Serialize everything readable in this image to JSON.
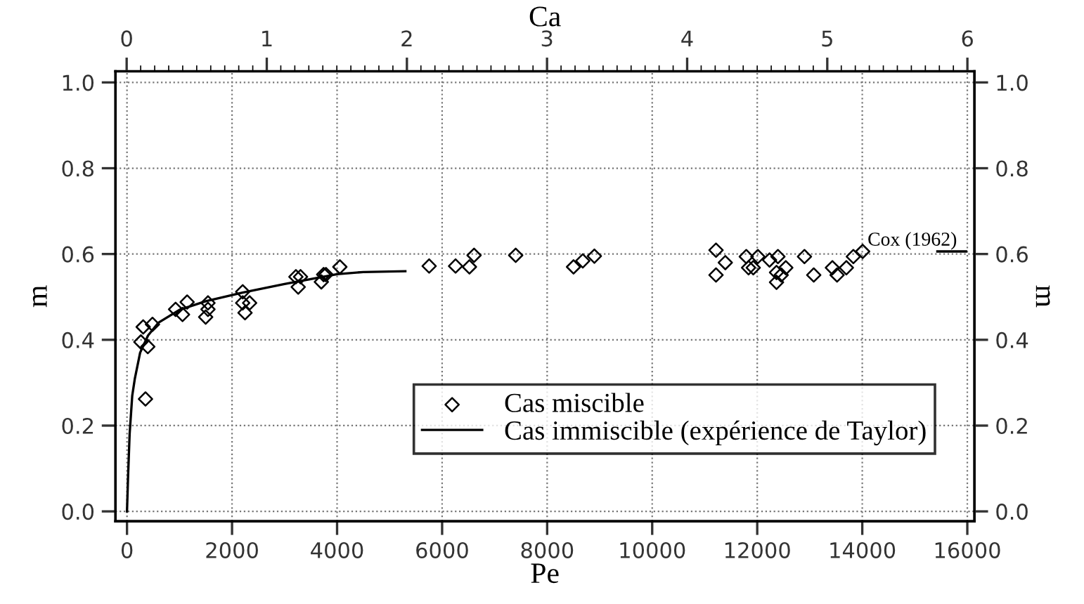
{
  "chart_data": {
    "type": "scatter",
    "xlabel": "Pe",
    "ylabel": "m",
    "y2label": "m",
    "x2label": "Ca",
    "xlim": [
      -220,
      16135
    ],
    "xticks": [
      0,
      2000,
      4000,
      6000,
      8000,
      10000,
      12000,
      14000,
      16000
    ],
    "ylim": [
      -0.023,
      1.026
    ],
    "yticks": [
      {
        "value": 0,
        "label": "0.0"
      },
      {
        "value": 0.2,
        "label": "0.2"
      },
      {
        "value": 0.4,
        "label": "0.4"
      },
      {
        "value": 0.6,
        "label": "0.6"
      },
      {
        "value": 0.8,
        "label": "0.8"
      },
      {
        "value": 1.0,
        "label": "1.0"
      }
    ],
    "y2lim": [
      -0.023,
      1.026
    ],
    "y2ticks": [
      {
        "value": 0,
        "label": "0.0"
      },
      {
        "value": 0.2,
        "label": "0.2"
      },
      {
        "value": 0.4,
        "label": "0.4"
      },
      {
        "value": 0.6,
        "label": "0.6"
      },
      {
        "value": 0.8,
        "label": "0.8"
      },
      {
        "value": 1.0,
        "label": "1.0"
      }
    ],
    "x2lim": [
      -0.08,
      6.05
    ],
    "x2ticks": [
      0,
      1,
      2,
      3,
      4,
      5,
      6
    ],
    "grid": true,
    "legend": "bottom right",
    "series": [
      {
        "name": "Cas miscible",
        "marker": "diamond",
        "color": "#000000",
        "x": [
          264,
          396,
          308,
          485,
          352,
          925,
          1145,
          1057,
          1542,
          1498,
          1542,
          2203,
          2203,
          2247,
          2335,
          3216,
          3260,
          3304,
          3700,
          3744,
          3788,
          4053,
          5753,
          6256,
          6520,
          6608,
          7401,
          8502,
          8678,
          8899,
          11215,
          11215,
          11392,
          11791,
          11835,
          11924,
          12012,
          12234,
          12394,
          12367,
          12367,
          12456,
          12544,
          12899,
          13076,
          13431,
          13520,
          13697,
          13830,
          14007
        ],
        "values": [
          0.395,
          0.384,
          0.43,
          0.436,
          0.262,
          0.471,
          0.488,
          0.459,
          0.486,
          0.453,
          0.471,
          0.512,
          0.486,
          0.463,
          0.486,
          0.547,
          0.523,
          0.547,
          0.535,
          0.552,
          0.552,
          0.57,
          0.572,
          0.572,
          0.57,
          0.597,
          0.597,
          0.57,
          0.584,
          0.595,
          0.609,
          0.551,
          0.58,
          0.594,
          0.568,
          0.568,
          0.594,
          0.586,
          0.594,
          0.557,
          0.534,
          0.551,
          0.568,
          0.594,
          0.551,
          0.568,
          0.551,
          0.568,
          0.594,
          0.606
        ]
      },
      {
        "name": "Cas immiscible (expérience de Taylor)",
        "type": "line",
        "line_style": "solid",
        "color": "#000000",
        "x": [
          0,
          20,
          50,
          100,
          150,
          250,
          400,
          600,
          1000,
          1500,
          2200,
          3000,
          4000,
          4500,
          5300
        ],
        "values": [
          0,
          0.08,
          0.18,
          0.27,
          0.31,
          0.37,
          0.41,
          0.44,
          0.47,
          0.49,
          0.51,
          0.53,
          0.553,
          0.558,
          0.56
        ]
      },
      {
        "type": "line",
        "line_style": "solid",
        "color": "#000000",
        "x": [
          15430,
          15975
        ],
        "values": [
          0.606,
          0.606
        ]
      }
    ],
    "annotations": [
      {
        "text": "Cox (1962)",
        "x": 14100,
        "y": 0.61
      }
    ]
  }
}
